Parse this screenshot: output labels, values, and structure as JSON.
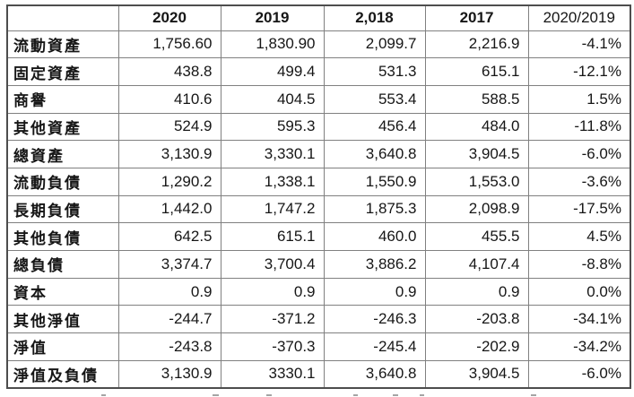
{
  "colors": {
    "background": "#ffffff",
    "border_outer": "#4d4d4d",
    "border_inner": "#808080",
    "text": "#161616"
  },
  "chart_data": {
    "type": "table",
    "title": "",
    "columns": [
      "",
      "2020",
      "2019",
      "2,018",
      "2017",
      "2020/2019"
    ],
    "header_bold": [
      false,
      true,
      true,
      true,
      true,
      false
    ],
    "rows": [
      {
        "label": "流動資產",
        "values": [
          "1,756.60",
          "1,830.90",
          "2,099.7",
          "2,216.9",
          "-4.1%"
        ]
      },
      {
        "label": "固定資產",
        "values": [
          "438.8",
          "499.4",
          "531.3",
          "615.1",
          "-12.1%"
        ]
      },
      {
        "label": "商譽",
        "values": [
          "410.6",
          "404.5",
          "553.4",
          "588.5",
          "1.5%"
        ]
      },
      {
        "label": "其他資產",
        "values": [
          "524.9",
          "595.3",
          "456.4",
          "484.0",
          "-11.8%"
        ]
      },
      {
        "label": "總資產",
        "values": [
          "3,130.9",
          "3,330.1",
          "3,640.8",
          "3,904.5",
          "-6.0%"
        ]
      },
      {
        "label": "流動負債",
        "values": [
          "1,290.2",
          "1,338.1",
          "1,550.9",
          "1,553.0",
          "-3.6%"
        ]
      },
      {
        "label": "長期負債",
        "values": [
          "1,442.0",
          "1,747.2",
          "1,875.3",
          "2,098.9",
          "-17.5%"
        ]
      },
      {
        "label": "其他負債",
        "values": [
          "642.5",
          "615.1",
          "460.0",
          "455.5",
          "4.5%"
        ]
      },
      {
        "label": "總負債",
        "values": [
          "3,374.7",
          "3,700.4",
          "3,886.2",
          "4,107.4",
          "-8.8%"
        ]
      },
      {
        "label": "資本",
        "values": [
          "0.9",
          "0.9",
          "0.9",
          "0.9",
          "0.0%"
        ]
      },
      {
        "label": "其他淨值",
        "values": [
          "-244.7",
          "-371.2",
          "-246.3",
          "-203.8",
          "-34.1%"
        ]
      },
      {
        "label": "淨值",
        "values": [
          "-243.8",
          "-370.3",
          "-245.4",
          "-202.9",
          "-34.2%"
        ]
      },
      {
        "label": "淨值及負債",
        "values": [
          "3,130.9",
          "3330.1",
          "3,640.8",
          "3,904.5",
          "-6.0%"
        ]
      }
    ]
  }
}
